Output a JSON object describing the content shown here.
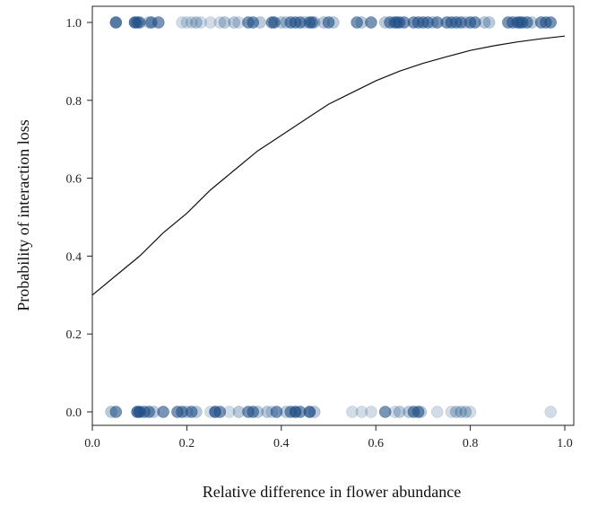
{
  "chart_data": {
    "type": "scatter",
    "title": "",
    "xlabel": "Relative difference in flower abundance",
    "ylabel": "Probability of interaction loss",
    "xlim": [
      0.0,
      1.0
    ],
    "ylim": [
      0.0,
      1.0
    ],
    "x_ticks": [
      "0.0",
      "0.2",
      "0.4",
      "0.6",
      "0.8",
      "1.0"
    ],
    "y_ticks": [
      "0.0",
      "0.2",
      "0.4",
      "0.6",
      "0.8",
      "1.0"
    ],
    "grid": false,
    "legend": "none",
    "point_color": "#1f4e86",
    "curve_color": "#111111",
    "series": [
      {
        "kind": "points",
        "y": 1.0,
        "x": [
          0.05,
          0.09,
          0.095,
          0.1,
          0.12,
          0.125,
          0.14,
          0.19,
          0.2,
          0.21,
          0.22,
          0.23,
          0.25,
          0.27,
          0.28,
          0.3,
          0.31,
          0.33,
          0.34,
          0.355,
          0.38,
          0.385,
          0.4,
          0.41,
          0.42,
          0.43,
          0.44,
          0.45,
          0.46,
          0.465,
          0.47,
          0.49,
          0.5,
          0.51,
          0.56,
          0.57,
          0.59,
          0.62,
          0.63,
          0.64,
          0.645,
          0.65,
          0.66,
          0.68,
          0.69,
          0.7,
          0.71,
          0.72,
          0.73,
          0.75,
          0.76,
          0.77,
          0.78,
          0.79,
          0.8,
          0.81,
          0.83,
          0.84,
          0.88,
          0.89,
          0.9,
          0.905,
          0.91,
          0.92,
          0.93,
          0.95,
          0.96,
          0.97
        ],
        "opacity": [
          0.75,
          0.75,
          0.6,
          0.6,
          0.3,
          0.6,
          0.6,
          0.2,
          0.2,
          0.2,
          0.3,
          0.2,
          0.2,
          0.2,
          0.3,
          0.3,
          0.2,
          0.6,
          0.6,
          0.3,
          0.6,
          0.6,
          0.3,
          0.3,
          0.6,
          0.6,
          0.6,
          0.3,
          0.6,
          0.6,
          0.3,
          0.3,
          0.6,
          0.3,
          0.6,
          0.3,
          0.6,
          0.3,
          0.6,
          0.6,
          0.6,
          0.6,
          0.6,
          0.6,
          0.6,
          0.6,
          0.6,
          0.3,
          0.6,
          0.6,
          0.6,
          0.6,
          0.6,
          0.3,
          0.6,
          0.6,
          0.3,
          0.3,
          0.6,
          0.6,
          0.6,
          0.6,
          0.6,
          0.6,
          0.3,
          0.6,
          0.6,
          0.6
        ]
      },
      {
        "kind": "points",
        "y": 0.0,
        "x": [
          0.04,
          0.05,
          0.095,
          0.1,
          0.11,
          0.12,
          0.13,
          0.15,
          0.18,
          0.19,
          0.2,
          0.21,
          0.22,
          0.25,
          0.26,
          0.27,
          0.29,
          0.31,
          0.33,
          0.34,
          0.35,
          0.37,
          0.38,
          0.39,
          0.41,
          0.42,
          0.43,
          0.44,
          0.46,
          0.47,
          0.55,
          0.57,
          0.59,
          0.62,
          0.64,
          0.65,
          0.67,
          0.68,
          0.69,
          0.695,
          0.73,
          0.76,
          0.77,
          0.78,
          0.79,
          0.8,
          0.97
        ],
        "opacity": [
          0.3,
          0.6,
          0.75,
          0.75,
          0.6,
          0.6,
          0.3,
          0.6,
          0.6,
          0.6,
          0.3,
          0.6,
          0.3,
          0.2,
          0.75,
          0.6,
          0.2,
          0.3,
          0.6,
          0.6,
          0.3,
          0.3,
          0.2,
          0.6,
          0.3,
          0.6,
          0.75,
          0.6,
          0.75,
          0.3,
          0.2,
          0.2,
          0.2,
          0.6,
          0.2,
          0.3,
          0.3,
          0.6,
          0.6,
          0.3,
          0.2,
          0.2,
          0.3,
          0.3,
          0.3,
          0.2,
          0.2
        ]
      },
      {
        "kind": "curve",
        "x": [
          0.0,
          0.05,
          0.1,
          0.15,
          0.2,
          0.25,
          0.3,
          0.35,
          0.4,
          0.45,
          0.5,
          0.55,
          0.6,
          0.65,
          0.7,
          0.75,
          0.8,
          0.85,
          0.9,
          0.95,
          1.0
        ],
        "y": [
          0.3,
          0.35,
          0.4,
          0.46,
          0.51,
          0.57,
          0.62,
          0.67,
          0.71,
          0.75,
          0.79,
          0.82,
          0.85,
          0.875,
          0.895,
          0.912,
          0.928,
          0.94,
          0.95,
          0.958,
          0.965
        ]
      }
    ]
  }
}
